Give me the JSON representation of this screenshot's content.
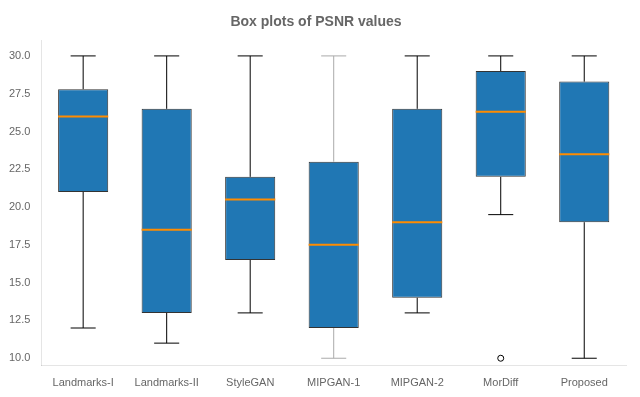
{
  "chart_data": {
    "type": "box",
    "title": "Box plots of PSNR values",
    "categories": [
      "Landmarks-I",
      "Landmarks-II",
      "StyleGAN",
      "MIPGAN-1",
      "MIPGAN-2",
      "MorDiff",
      "Proposed"
    ],
    "boxes": [
      {
        "whislo": 12.0,
        "q1": 21.0,
        "med": 26.0,
        "q3": 27.8,
        "whishi": 30.0,
        "fliers": [],
        "whisker_color": "black"
      },
      {
        "whislo": 11.0,
        "q1": 13.0,
        "med": 18.5,
        "q3": 26.5,
        "whishi": 30.0,
        "fliers": [],
        "whisker_color": "black"
      },
      {
        "whislo": 13.0,
        "q1": 16.5,
        "med": 20.5,
        "q3": 22.0,
        "whishi": 30.0,
        "fliers": [],
        "whisker_color": "black"
      },
      {
        "whislo": 10.0,
        "q1": 12.0,
        "med": 17.5,
        "q3": 23.0,
        "whishi": 30.0,
        "fliers": [],
        "whisker_color": "#aaaaaa"
      },
      {
        "whislo": 13.0,
        "q1": 14.0,
        "med": 19.0,
        "q3": 26.5,
        "whishi": 30.0,
        "fliers": [],
        "whisker_color": "black"
      },
      {
        "whislo": 19.5,
        "q1": 22.0,
        "med": 26.3,
        "q3": 29.0,
        "whishi": 30.0,
        "fliers": [
          10.0
        ],
        "whisker_color": "black"
      },
      {
        "whislo": 10.0,
        "q1": 19.0,
        "med": 23.5,
        "q3": 28.3,
        "whishi": 30.0,
        "fliers": [],
        "whisker_color": "black"
      }
    ],
    "color": "#2077b4",
    "median_color": "#ff8c00",
    "flier_color": "black",
    "marker": "o",
    "ylim": [
      9.5,
      31.0
    ],
    "yticks": [
      {
        "value": 10.0,
        "label": "10.0"
      },
      {
        "value": 12.5,
        "label": "12.5"
      },
      {
        "value": 15.0,
        "label": "15.0"
      },
      {
        "value": 17.5,
        "label": "17.5"
      },
      {
        "value": 20.0,
        "label": "20.0"
      },
      {
        "value": 22.5,
        "label": "22.5"
      },
      {
        "value": 25.0,
        "label": "25.0"
      },
      {
        "value": 27.5,
        "label": "27.5"
      },
      {
        "value": 30.0,
        "label": "30.0"
      }
    ],
    "grid": false
  }
}
